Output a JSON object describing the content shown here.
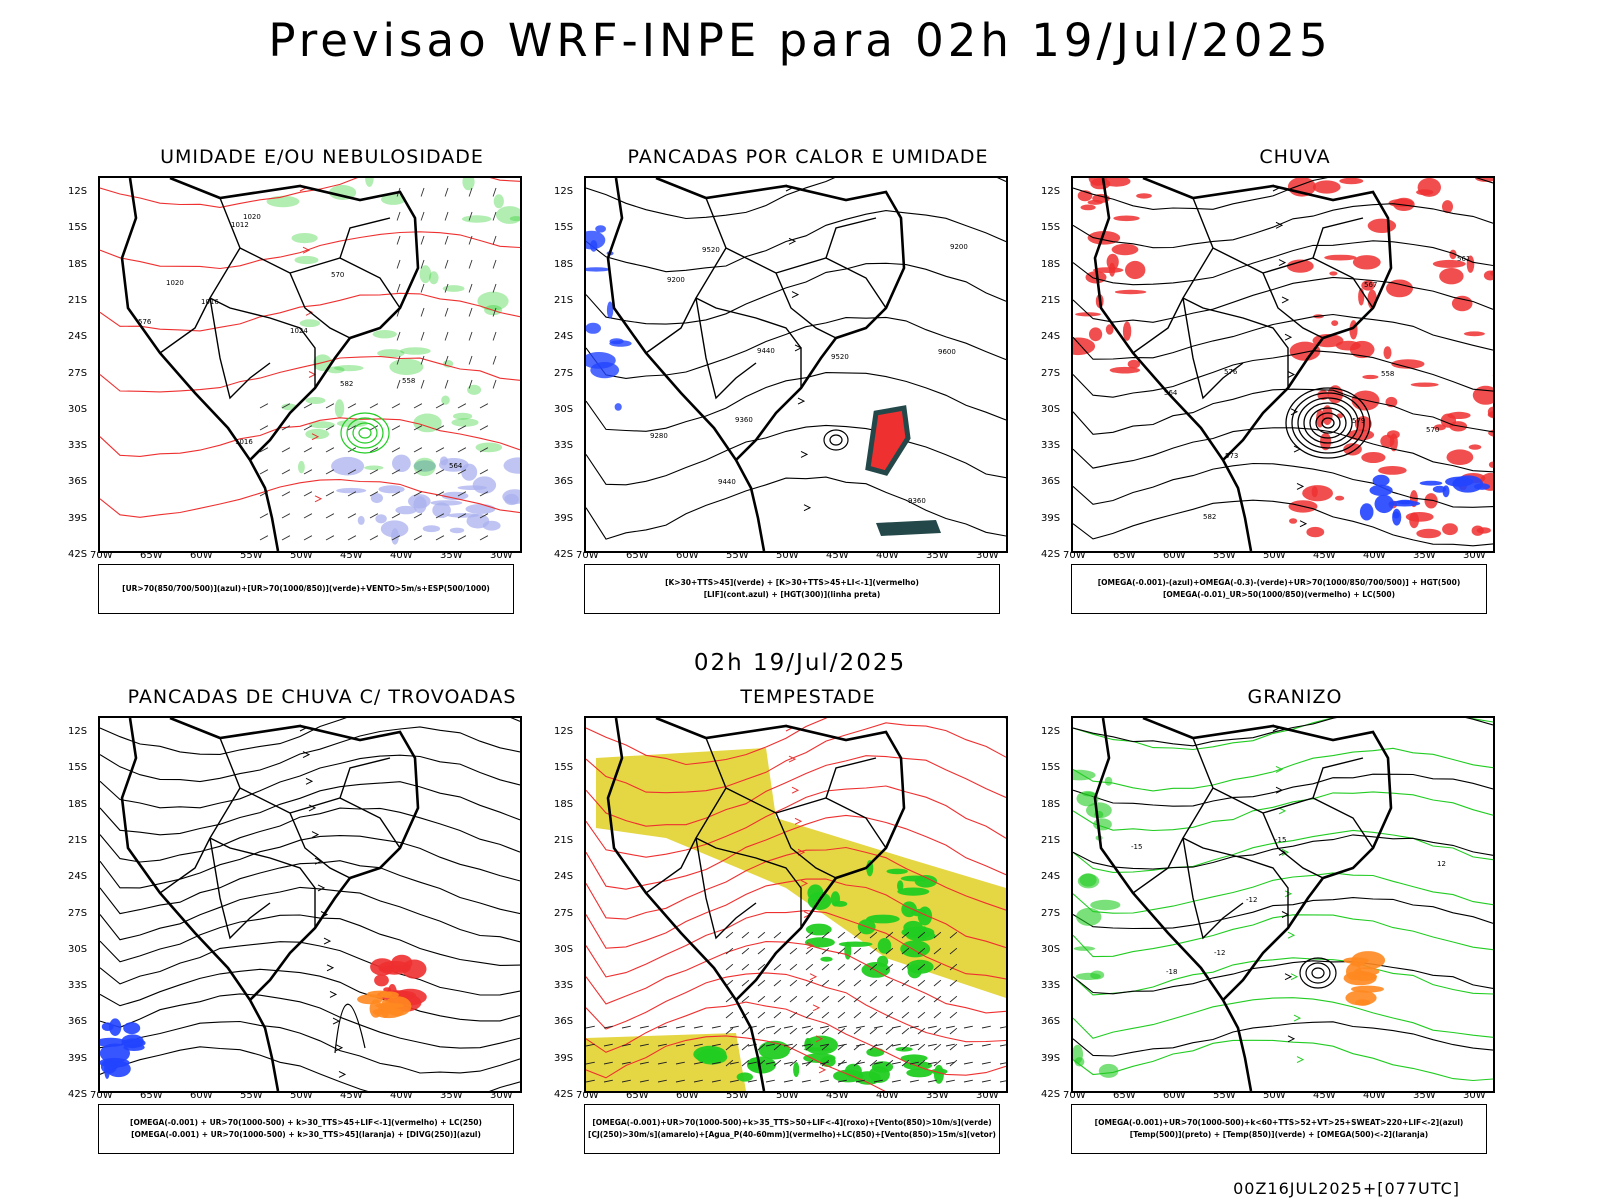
{
  "header": {
    "title": "Previsao WRF-INPE  para 02h 19/Jul/2025"
  },
  "mid": {
    "title": "02h 19/Jul/2025"
  },
  "footer": {
    "run": "00Z16JUL2025+[077UTC]"
  },
  "axes": {
    "lat": [
      "12S",
      "15S",
      "18S",
      "21S",
      "24S",
      "27S",
      "30S",
      "33S",
      "36S",
      "39S",
      "42S"
    ],
    "lon": [
      "70W",
      "65W",
      "60W",
      "55W",
      "50W",
      "45W",
      "40W",
      "35W",
      "30W"
    ]
  },
  "colors": {
    "red": "#ee3030",
    "green": "#22cc22",
    "blue": "#2244ff",
    "lavender": "#aab0ee",
    "yellow": "#e2d230",
    "orange": "#ff8820",
    "darkteal": "#24484a",
    "black": "#000000"
  },
  "panels": [
    {
      "id": "umidade",
      "title": "UMIDADE E/OU NEBULOSIDADE",
      "caption": [
        "[UR>70(850/700/500)](azul)+[UR>70(1000/850)](verde)+VENTO>5m/s+ESP(500/1000)"
      ],
      "labels": [
        "1016",
        "1020",
        "1024",
        "1012",
        "1016",
        "570",
        "576",
        "582",
        "564",
        "558",
        "1020"
      ]
    },
    {
      "id": "pancadas-calor",
      "title": "PANCADAS POR CALOR E UMIDADE",
      "caption": [
        "[K>30+TTS>45](verde) + [K>30+TTS>45+LI<-1](vermelho)",
        "[LIF](cont.azul) + [HGT(300)](linha preta)"
      ],
      "labels": [
        "9520",
        "9600",
        "9440",
        "9360",
        "9280",
        "9200",
        "9520",
        "9440",
        "9360",
        "9200"
      ]
    },
    {
      "id": "chuva",
      "title": "CHUVA",
      "caption": [
        "[OMEGA(-0.001)-(azul)+OMEGA(-0.3)-(verde)+UR>70(1000/850/700/500)] + HGT(500)",
        "[OMEGA(-0.01)_UR>50(1000/850)(vermelho) + LC(500)"
      ],
      "labels": [
        "582",
        "579",
        "576",
        "573",
        "570",
        "567",
        "564",
        "561",
        "558"
      ]
    },
    {
      "id": "pancadas-trovoadas",
      "title": "PANCADAS DE CHUVA C/ TROVOADAS",
      "caption": [
        "[OMEGA(-0.001) + UR>70(1000-500) + k>30_TTS>45+LIF<-1](vermelho) + LC(250)",
        "[OMEGA(-0.001) + UR>70(1000-500) + k>30_TTS>45](laranja) + [DIVG(250)](azul)"
      ],
      "labels": []
    },
    {
      "id": "tempestade",
      "title": "TEMPESTADE",
      "caption": [
        "[OMEGA(-0.001)+UR>70(1000-500)+k>35_TTS>50+LIF<-4](roxo)+[Vento(850)>10m/s](verde)",
        "[CJ(250)>30m/s](amarelo)+[Agua_P(40-60mm)](vermelho)+LC(850)+[Vento(850)>15m/s](vetor)"
      ],
      "labels": []
    },
    {
      "id": "granizo",
      "title": "GRANIZO",
      "caption": [
        "[OMEGA(-0.001)+UR>70(1000-500)+k<60+TTS>52+VT>25+SWEAT>220+LIF<-2](azul)",
        "[Temp(500)](preto) + [Temp(850)](verde) + [OMEGA(500)<-2](laranja)"
      ],
      "labels": [
        "-12",
        "-15",
        "-18",
        "12",
        "-12",
        "-15"
      ]
    }
  ]
}
